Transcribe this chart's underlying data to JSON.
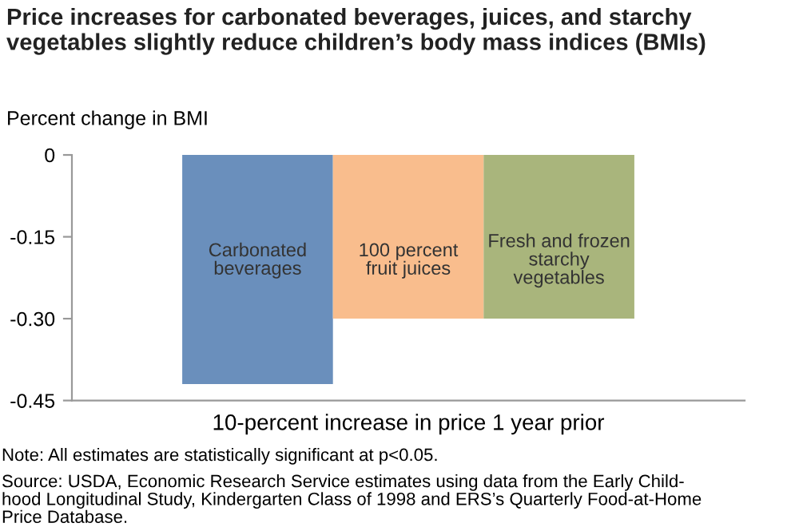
{
  "chart_data": {
    "type": "bar",
    "title": "Price increases for carbonated beverages, juices, and starchy vegetables slightly reduce children’s body mass indices (BMIs)",
    "ylabel": "Percent change in BMI",
    "categories": [
      "10-percent increase in price 1 year prior"
    ],
    "series": [
      {
        "name": "Carbonated\nbeverages",
        "color": "#6a8fbc",
        "values": [
          -0.42
        ]
      },
      {
        "name": "100 percent\nfruit juices",
        "color": "#f9bd8d",
        "values": [
          -0.3
        ]
      },
      {
        "name": "Fresh and frozen\nstarchy\nvegetables",
        "color": "#a9b57c",
        "values": [
          -0.3
        ]
      }
    ],
    "ylim": [
      -0.45,
      0
    ],
    "yticks": [
      {
        "value": 0,
        "label": "0"
      },
      {
        "value": -0.15,
        "label": "-0.15"
      },
      {
        "value": -0.3,
        "label": "-0.30"
      },
      {
        "value": -0.45,
        "label": "-0.45"
      }
    ],
    "grid": false,
    "legend": false,
    "annotations": [
      "Note: All estimates are statistically significant at p<0.05.",
      "Source: USDA, Economic Research Service estimates using data from the Early Child-\nhood Longitudinal Study, Kindergarten Class of 1998 and ERS’s Quarterly Food-at-Home\nPrice Database."
    ]
  }
}
